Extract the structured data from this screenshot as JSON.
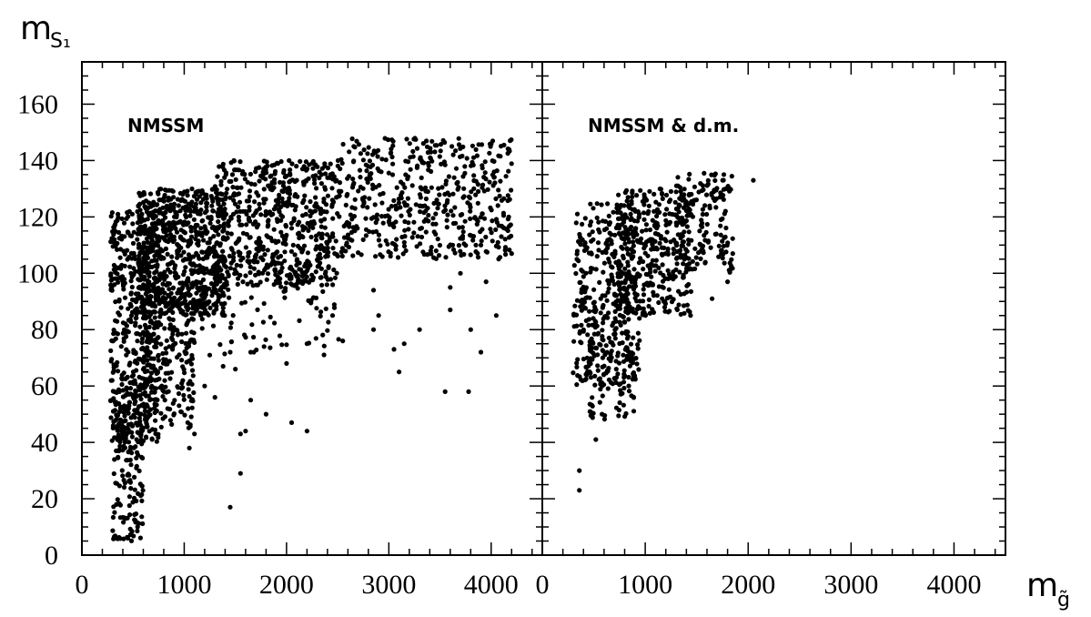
{
  "chart_data": {
    "type": "scatter",
    "ylabel": {
      "main": "m",
      "sub": "S₁"
    },
    "xlabel": {
      "main": "m",
      "sub": "g̃"
    },
    "ylim": [
      0,
      175
    ],
    "yticks": [
      0,
      20,
      40,
      60,
      80,
      100,
      120,
      140,
      160
    ],
    "yticks_labels": [
      "0",
      "20",
      "40",
      "60",
      "80",
      "100",
      "120",
      "140",
      "160"
    ],
    "grid": false,
    "legend": "none",
    "marker_color": "#000000",
    "panels": [
      {
        "label": "NMSSM",
        "xlim": [
          0,
          4500
        ],
        "xticks": [
          0,
          1000,
          2000,
          3000,
          4000
        ],
        "xticks_labels": [
          "0",
          "1000",
          "2000",
          "3000",
          "4000"
        ],
        "seed": 12345,
        "scatter_regions": [
          {
            "n": 500,
            "x_min": 280,
            "x_max": 750,
            "y_min": 40,
            "y_max": 122
          },
          {
            "n": 160,
            "x_min": 300,
            "x_max": 600,
            "y_min": 5,
            "y_max": 60
          },
          {
            "n": 700,
            "x_min": 550,
            "x_max": 1400,
            "y_min": 85,
            "y_max": 130
          },
          {
            "n": 220,
            "x_min": 600,
            "x_max": 1100,
            "y_min": 45,
            "y_max": 95
          },
          {
            "n": 550,
            "x_min": 1300,
            "x_max": 2500,
            "y_min": 95,
            "y_max": 140
          },
          {
            "n": 500,
            "x_min": 2500,
            "x_max": 4200,
            "y_min": 105,
            "y_max": 148
          },
          {
            "n": 120,
            "x_min": 1100,
            "x_max": 2600,
            "y_min": 70,
            "y_max": 115
          }
        ],
        "outliers": [
          [
            1450,
            17
          ],
          [
            1550,
            29
          ],
          [
            1600,
            44
          ],
          [
            1550,
            43
          ],
          [
            2200,
            44
          ],
          [
            2050,
            47
          ],
          [
            1800,
            50
          ],
          [
            1650,
            55
          ],
          [
            1300,
            56
          ],
          [
            1050,
            38
          ],
          [
            1100,
            43
          ],
          [
            1500,
            66
          ],
          [
            1380,
            67
          ],
          [
            1650,
            72
          ],
          [
            1780,
            74
          ],
          [
            2200,
            75
          ],
          [
            2550,
            76
          ],
          [
            2850,
            80
          ],
          [
            2900,
            85
          ],
          [
            3150,
            75
          ],
          [
            3050,
            73
          ],
          [
            3100,
            65
          ],
          [
            3550,
            58
          ],
          [
            3780,
            58
          ],
          [
            3800,
            80
          ],
          [
            3900,
            72
          ],
          [
            4050,
            85
          ],
          [
            3700,
            100
          ],
          [
            3900,
            110
          ],
          [
            4100,
            113
          ],
          [
            4200,
            107
          ],
          [
            2450,
            85
          ],
          [
            3300,
            80
          ],
          [
            2850,
            94
          ],
          [
            3600,
            95
          ],
          [
            3950,
            97
          ],
          [
            1450,
            72
          ],
          [
            1200,
            60
          ],
          [
            2000,
            68
          ],
          [
            3600,
            87
          ]
        ]
      },
      {
        "label": "NMSSM & d.m.",
        "xlim": [
          0,
          4500
        ],
        "xticks": [
          0,
          1000,
          2000,
          3000,
          4000
        ],
        "xticks_labels": [
          "0",
          "1000",
          "2000",
          "3000",
          "4000"
        ],
        "seed": 98765,
        "scatter_regions": [
          {
            "n": 360,
            "x_min": 300,
            "x_max": 950,
            "y_min": 60,
            "y_max": 125
          },
          {
            "n": 360,
            "x_min": 700,
            "x_max": 1450,
            "y_min": 85,
            "y_max": 130
          },
          {
            "n": 160,
            "x_min": 1300,
            "x_max": 1850,
            "y_min": 100,
            "y_max": 136
          },
          {
            "n": 90,
            "x_min": 450,
            "x_max": 900,
            "y_min": 48,
            "y_max": 85
          }
        ],
        "outliers": [
          [
            360,
            30
          ],
          [
            360,
            23
          ],
          [
            520,
            41
          ],
          [
            580,
            50
          ],
          [
            2050,
            133
          ],
          [
            1850,
            107
          ],
          [
            1800,
            97
          ],
          [
            1650,
            91
          ],
          [
            1780,
            122
          ]
        ]
      }
    ]
  }
}
